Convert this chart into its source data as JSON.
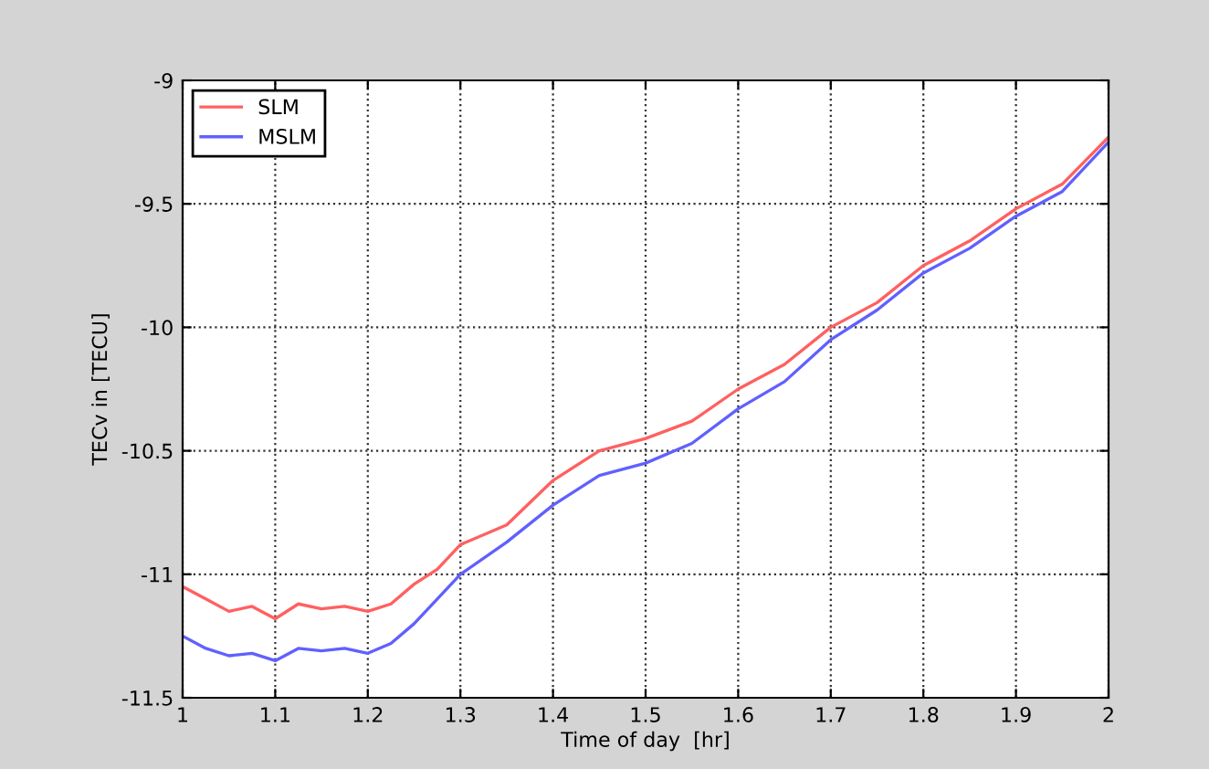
{
  "chart_data": {
    "type": "line",
    "xlabel": "Time of day  [hr]",
    "ylabel": "TECv in [TECU]",
    "x": [
      1.0,
      1.025,
      1.05,
      1.075,
      1.1,
      1.125,
      1.15,
      1.175,
      1.2,
      1.225,
      1.25,
      1.275,
      1.3,
      1.35,
      1.4,
      1.45,
      1.5,
      1.55,
      1.6,
      1.65,
      1.7,
      1.75,
      1.8,
      1.85,
      1.9,
      1.95,
      2.0
    ],
    "series": [
      {
        "name": "SLM",
        "color": "#ff6060",
        "values": [
          -11.05,
          -11.1,
          -11.15,
          -11.13,
          -11.18,
          -11.12,
          -11.14,
          -11.13,
          -11.15,
          -11.12,
          -11.04,
          -10.98,
          -10.88,
          -10.8,
          -10.62,
          -10.5,
          -10.45,
          -10.38,
          -10.25,
          -10.15,
          -10.0,
          -9.9,
          -9.75,
          -9.65,
          -9.52,
          -9.42,
          -9.23
        ]
      },
      {
        "name": "MSLM",
        "color": "#6060ff",
        "values": [
          -11.25,
          -11.3,
          -11.33,
          -11.32,
          -11.35,
          -11.3,
          -11.31,
          -11.3,
          -11.32,
          -11.28,
          -11.2,
          -11.1,
          -11.0,
          -10.87,
          -10.72,
          -10.6,
          -10.55,
          -10.47,
          -10.33,
          -10.22,
          -10.05,
          -9.93,
          -9.78,
          -9.68,
          -9.55,
          -9.45,
          -9.25
        ]
      }
    ],
    "xlim": [
      1,
      2
    ],
    "ylim": [
      -11.5,
      -9
    ],
    "xticks": [
      1,
      1.1,
      1.2,
      1.3,
      1.4,
      1.5,
      1.6,
      1.7,
      1.8,
      1.9,
      2
    ],
    "yticks": [
      -11.5,
      -11,
      -10.5,
      -10,
      -9.5,
      -9
    ],
    "grid": true,
    "legend": "top left",
    "line_style": "solid",
    "marker": "none"
  }
}
